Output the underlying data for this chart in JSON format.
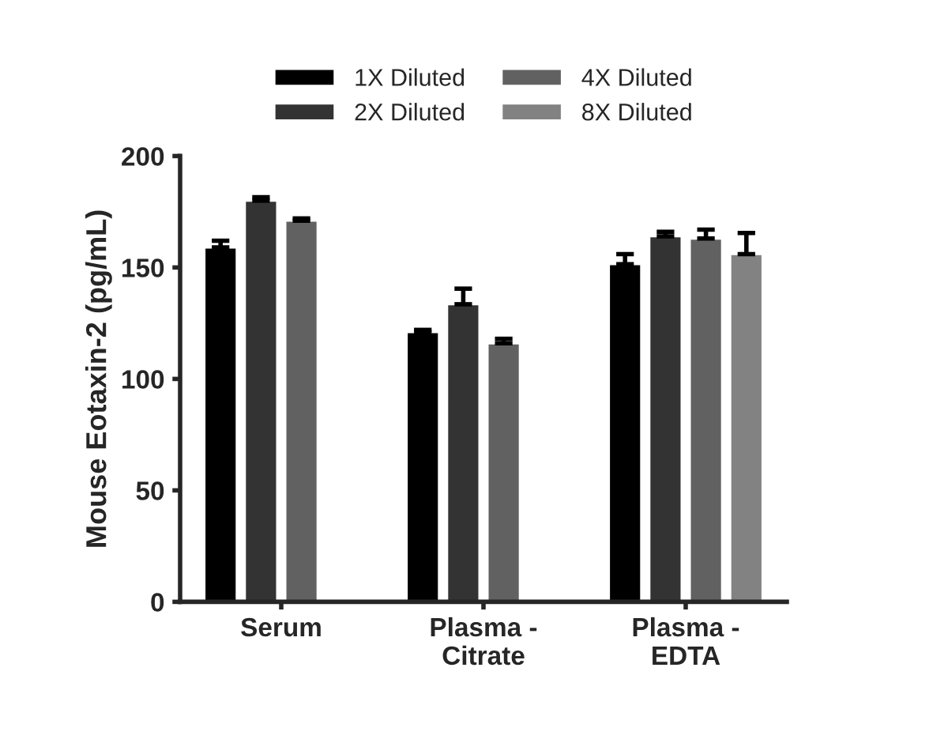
{
  "chart_data": {
    "type": "bar",
    "ylabel": "Mouse Eotaxin-2 (pg/mL)",
    "categories": [
      "Serum",
      "Plasma -\nCitrate",
      "Plasma -\nEDTA"
    ],
    "series": [
      {
        "name": "1X Diluted",
        "color": "#000000",
        "values": [
          159,
          121,
          151.5
        ],
        "errors": [
          [
            159,
            162
          ],
          [
            121,
            122
          ],
          [
            151.5,
            156
          ]
        ]
      },
      {
        "name": "2X Diluted",
        "color": "#333333",
        "values": [
          180,
          133.5,
          164
        ],
        "errors": [
          [
            180,
            181.5
          ],
          [
            133.5,
            140.5
          ],
          [
            164,
            166
          ]
        ]
      },
      {
        "name": "4X Diluted",
        "color": "#616161",
        "values": [
          171,
          116,
          163
        ],
        "errors": [
          [
            171,
            172
          ],
          [
            116,
            118
          ],
          [
            163,
            167
          ]
        ]
      },
      {
        "name": "8X Diluted",
        "color": "#828282",
        "values": [
          null,
          null,
          156
        ],
        "errors": [
          null,
          null,
          [
            156,
            165.5
          ]
        ]
      }
    ],
    "ylim": [
      0,
      200
    ],
    "yticks": [
      0,
      50,
      100,
      150,
      200
    ],
    "grid": false,
    "legend": "top"
  }
}
